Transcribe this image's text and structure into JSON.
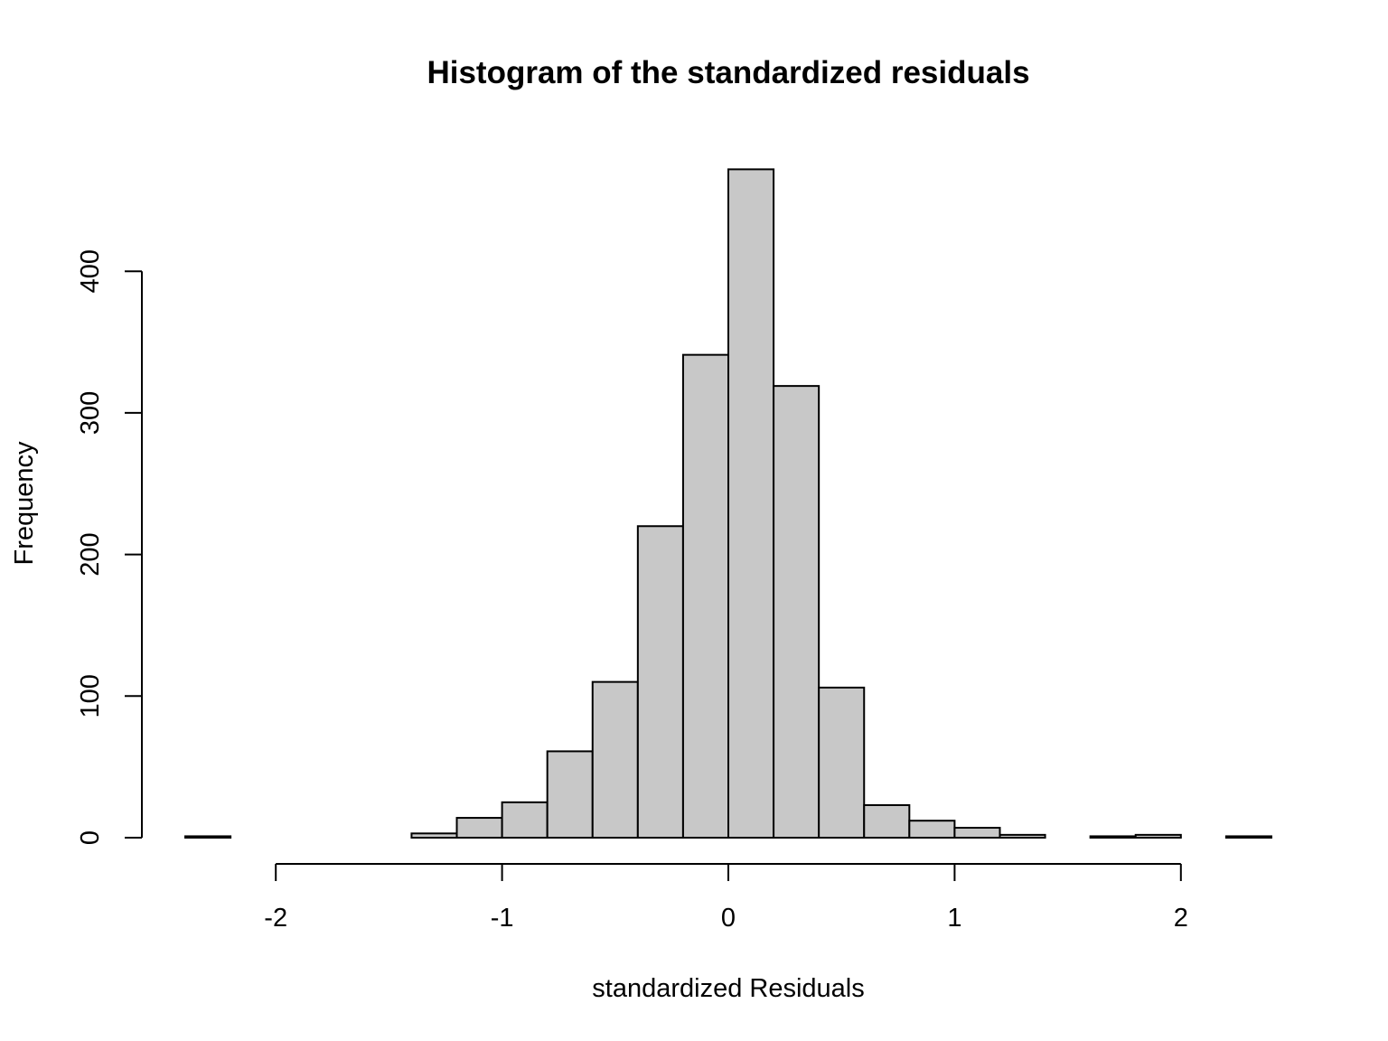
{
  "chart_data": {
    "type": "bar",
    "title": "Histogram of the standardized residuals",
    "xlabel": "standardized Residuals",
    "ylabel": "Frequency",
    "bin_edges": [
      -2.4,
      -2.2,
      -2.0,
      -1.8,
      -1.6,
      -1.4,
      -1.2,
      -1.0,
      -0.8,
      -0.6,
      -0.4,
      -0.2,
      0.0,
      0.2,
      0.4,
      0.6,
      0.8,
      1.0,
      1.2,
      1.4,
      1.6,
      1.8,
      2.0,
      2.2,
      2.4
    ],
    "values": [
      1,
      0,
      0,
      0,
      0,
      3,
      14,
      25,
      61,
      110,
      220,
      341,
      472,
      319,
      106,
      23,
      12,
      7,
      2,
      0,
      1,
      2,
      0,
      1
    ],
    "xlim": [
      -2.4,
      2.4
    ],
    "ylim": [
      0,
      472
    ],
    "x_ticks": [
      -2,
      -1,
      0,
      1,
      2
    ],
    "x_tick_labels": [
      "-2",
      "-1",
      "0",
      "1",
      "2"
    ],
    "y_ticks": [
      0,
      100,
      200,
      300,
      400
    ],
    "y_tick_labels": [
      "0",
      "100",
      "200",
      "300",
      "400"
    ],
    "bar_fill": "#c8c8c8",
    "bar_stroke": "#000000",
    "grid": false
  }
}
